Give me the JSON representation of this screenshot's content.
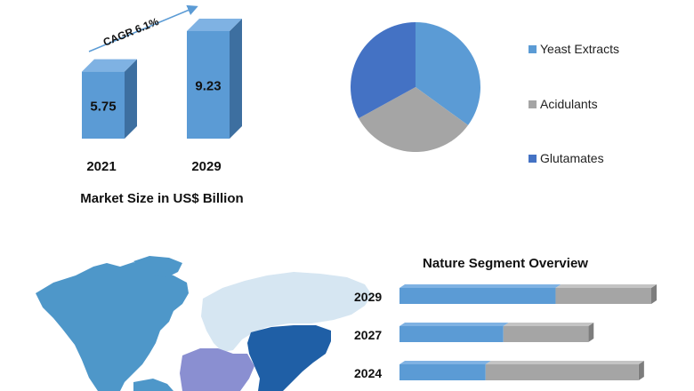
{
  "colors": {
    "bar_blue": "#5b9bd5",
    "bar_blue_top": "#7fb2e3",
    "bar_blue_side": "#3d6fa0",
    "gray": "#a5a5a5",
    "gray_top": "#c4c4c4",
    "gray_side": "#7d7d7d",
    "dark_blue": "#4472c4",
    "arrow_blue": "#5b9bd5",
    "map_americas": "#4e97c9",
    "map_europe_russia": "#d6e6f2",
    "map_asia": "#1f5fa6",
    "map_africa_me": "#8a8fd1"
  },
  "chart_data": [
    {
      "type": "bar",
      "categories": [
        "2021",
        "2029"
      ],
      "values": [
        5.75,
        9.23
      ],
      "value_labels": [
        "5.75",
        "9.23"
      ],
      "xlabel": "Market Size in US$ Billion",
      "annotation": "CAGR 6.1%"
    },
    {
      "type": "pie",
      "series": [
        {
          "name": "Yeast Extracts",
          "value": 35,
          "color": "#5b9bd5"
        },
        {
          "name": "Acidulants",
          "value": 32,
          "color": "#a5a5a5"
        },
        {
          "name": "Glutamates",
          "value": 33,
          "color": "#4472c4"
        }
      ],
      "legend_placement": "right"
    },
    {
      "type": "bar",
      "orientation": "horizontal",
      "title": "Nature Segment Overview",
      "categories": [
        "2029",
        "2027",
        "2024"
      ],
      "series": [
        {
          "color": "#5b9bd5",
          "values": [
            0.62,
            0.55,
            0.36
          ]
        },
        {
          "color": "#a5a5a5",
          "values": [
            0.38,
            0.45,
            0.64
          ]
        }
      ],
      "totals": [
        1.0,
        0.75,
        0.95
      ]
    }
  ]
}
